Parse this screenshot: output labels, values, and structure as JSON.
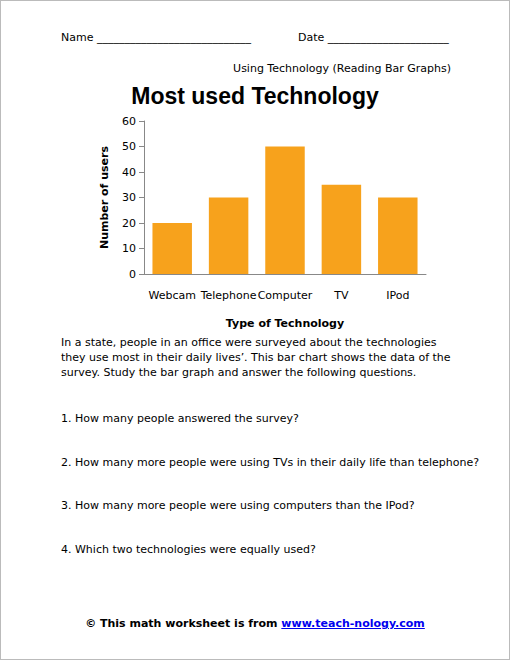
{
  "header": {
    "name": "Name ____________________________",
    "date": "Date ______________________",
    "subtitle": "Using Technology (Reading Bar Graphs)"
  },
  "chart_data": {
    "type": "bar",
    "title": "Most used Technology",
    "x_label": "Type of Technology",
    "y_label": "Number of users",
    "categories": [
      "Webcam",
      "Telephone",
      "Computer",
      "TV",
      "IPod"
    ],
    "values": [
      20,
      30,
      50,
      35,
      30
    ],
    "color": "#f7a21c",
    "ylim": [
      0,
      60
    ],
    "yticks": [
      0,
      10,
      20,
      30,
      40,
      50,
      60
    ],
    "grid": false
  },
  "intro": "In a state, people in an office were surveyed about the technologies they use most in their daily lives’. This bar chart shows the data of the survey. Study the bar graph and answer the following questions.",
  "questions": [
    "1. How many people answered the survey?",
    "2. How many more people were using TVs in their daily life than telephone?",
    "3. How many more people were using computers than the IPod?",
    "4. Which two technologies were equally used?"
  ],
  "footer": {
    "text": "© This math worksheet is from ",
    "link": "www.teach-nology.com"
  }
}
